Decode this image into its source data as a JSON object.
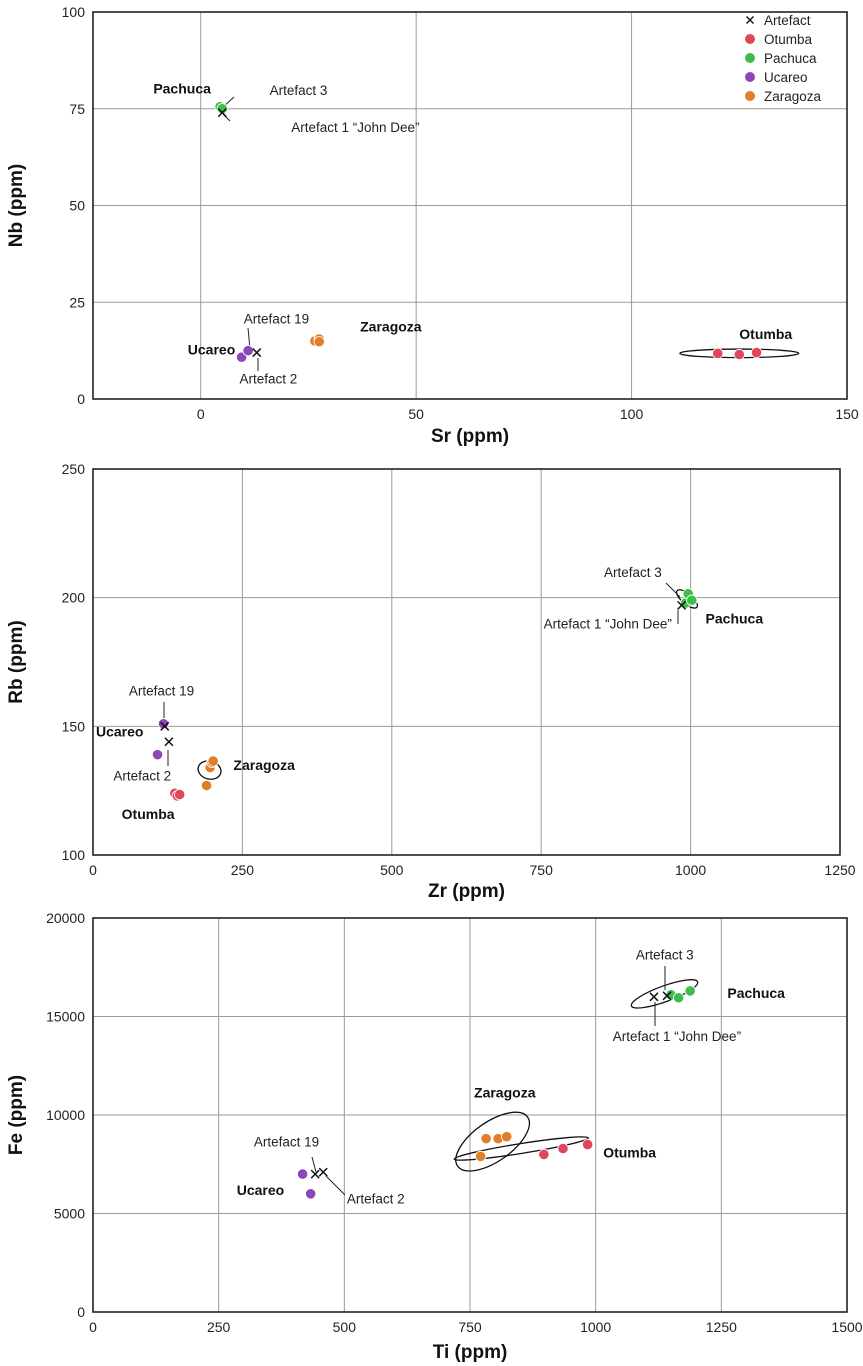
{
  "colors": {
    "otumba": "#e0475a",
    "pachuca": "#3cbf4a",
    "ucareo": "#8e45b8",
    "zaragoza": "#e07f27",
    "artefact": "#111111"
  },
  "legend": [
    {
      "key": "artefact",
      "label": "Artefact",
      "marker": "x"
    },
    {
      "key": "otumba",
      "label": "Otumba",
      "marker": "dot"
    },
    {
      "key": "pachuca",
      "label": "Pachuca",
      "marker": "dot"
    },
    {
      "key": "ucareo",
      "label": "Ucareo",
      "marker": "dot"
    },
    {
      "key": "zaragoza",
      "label": "Zaragoza",
      "marker": "dot"
    }
  ],
  "chart_data": [
    {
      "type": "scatter",
      "xlabel": "Sr (ppm)",
      "ylabel": "Nb (ppm)",
      "xlim": [
        -25,
        150
      ],
      "ylim": [
        0,
        100
      ],
      "xticks": [
        0,
        50,
        100,
        150
      ],
      "yticks": [
        0,
        25,
        50,
        75,
        100
      ],
      "grid": true,
      "legend": "top-right",
      "series": [
        {
          "key": "otumba",
          "name": "Otumba",
          "points": [
            [
              120,
              11.8
            ],
            [
              125,
              11.5
            ],
            [
              129,
              12
            ]
          ]
        },
        {
          "key": "pachuca",
          "name": "Pachuca",
          "points": [
            [
              4.5,
              75.5
            ],
            [
              5,
              75
            ]
          ]
        },
        {
          "key": "ucareo",
          "name": "Ucareo",
          "points": [
            [
              9.5,
              10.8
            ],
            [
              11,
              12.5
            ]
          ]
        },
        {
          "key": "zaragoza",
          "name": "Zaragoza",
          "points": [
            [
              26.5,
              15
            ],
            [
              27.5,
              15.5
            ],
            [
              27.5,
              14.8
            ]
          ]
        },
        {
          "key": "artefact",
          "name": "Artefact",
          "points": [
            [
              5,
              74
            ],
            [
              13,
              12
            ]
          ]
        }
      ],
      "ellipses": [
        {
          "cx": 125,
          "cy": 11.8,
          "rx": 13.8,
          "ry": 1.1,
          "angle": 0
        }
      ],
      "source_labels": [
        {
          "text": "Pachuca",
          "x": -11,
          "y": 79
        },
        {
          "text": "Zaragoza",
          "x": 37,
          "y": 17.5
        },
        {
          "text": "Ucareo",
          "x": -3,
          "y": 11.5
        },
        {
          "text": "Otumba",
          "x": 125,
          "y": 15.5
        }
      ],
      "annotations": [
        {
          "text": "Artefact 3",
          "x": 16,
          "y": 78.5
        },
        {
          "text": "Artefact 1 “John Dee”",
          "x": 21,
          "y": 69
        },
        {
          "text": "Artefact 19",
          "x": 10,
          "y": 19.5
        },
        {
          "text": "Artefact 2",
          "x": 9,
          "y": 4
        }
      ]
    },
    {
      "type": "scatter",
      "xlabel": "Zr (ppm)",
      "ylabel": "Rb (ppm)",
      "xlim": [
        0,
        1250
      ],
      "ylim": [
        100,
        250
      ],
      "xticks": [
        0,
        250,
        500,
        750,
        1000,
        1250
      ],
      "yticks": [
        100,
        150,
        200,
        250
      ],
      "grid": true,
      "series": [
        {
          "key": "otumba",
          "name": "Otumba",
          "points": [
            [
              137,
              124
            ],
            [
              141,
              123
            ],
            [
              145,
              123.5
            ]
          ]
        },
        {
          "key": "pachuca",
          "name": "Pachuca",
          "points": [
            [
              992,
              198
            ],
            [
              996,
              201.5
            ],
            [
              1002,
              199
            ]
          ]
        },
        {
          "key": "ucareo",
          "name": "Ucareo",
          "points": [
            [
              118,
              151
            ],
            [
              108,
              139
            ]
          ]
        },
        {
          "key": "zaragoza",
          "name": "Zaragoza",
          "points": [
            [
              190,
              127
            ],
            [
              196,
              134
            ],
            [
              199,
              136
            ],
            [
              201,
              136.5
            ]
          ]
        },
        {
          "key": "artefact",
          "name": "Artefact",
          "points": [
            [
              985,
              197
            ],
            [
              127,
              144
            ],
            [
              120,
              150
            ]
          ]
        }
      ],
      "ellipses": [
        {
          "cx": 195,
          "cy": 133,
          "rx": 15,
          "ry": 4.5,
          "angle": 75
        },
        {
          "cx": 994,
          "cy": 199.5,
          "rx": 8.5,
          "ry": 5,
          "angle": 50
        }
      ],
      "source_labels": [
        {
          "text": "Pachuca",
          "x": 1025,
          "y": 190
        },
        {
          "text": "Zaragoza",
          "x": 235,
          "y": 133
        },
        {
          "text": "Ucareo",
          "x": 5,
          "y": 146
        },
        {
          "text": "Otumba",
          "x": 48,
          "y": 114
        }
      ],
      "annotations": [
        {
          "text": "Artefact 3",
          "x": 855,
          "y": 208
        },
        {
          "text": "Artefact 1 “John Dee”",
          "x": 754,
          "y": 188
        },
        {
          "text": "Artefact 19",
          "x": 60,
          "y": 162
        },
        {
          "text": "Artefact 2",
          "x": 34,
          "y": 129
        }
      ]
    },
    {
      "type": "scatter",
      "xlabel": "Ti (ppm)",
      "ylabel": "Fe (ppm)",
      "xlim": [
        0,
        1500
      ],
      "ylim": [
        0,
        20000
      ],
      "xticks": [
        0,
        250,
        500,
        750,
        1000,
        1250,
        1500
      ],
      "yticks": [
        0,
        5000,
        10000,
        15000,
        20000
      ],
      "grid": true,
      "series": [
        {
          "key": "otumba",
          "name": "Otumba",
          "points": [
            [
              897,
              8000
            ],
            [
              935,
              8300
            ],
            [
              984,
              8500
            ]
          ]
        },
        {
          "key": "pachuca",
          "name": "Pachuca",
          "points": [
            [
              1150,
              16100
            ],
            [
              1165,
              15950
            ],
            [
              1188,
              16300
            ]
          ]
        },
        {
          "key": "ucareo",
          "name": "Ucareo",
          "points": [
            [
              417,
              7000
            ],
            [
              433,
              6000
            ]
          ]
        },
        {
          "key": "zaragoza",
          "name": "Zaragoza",
          "points": [
            [
              771,
              7900
            ],
            [
              782,
              8800
            ],
            [
              806,
              8800
            ],
            [
              823,
              8900
            ]
          ]
        },
        {
          "key": "artefact",
          "name": "Artefact",
          "points": [
            [
              1116,
              16000
            ],
            [
              1142,
              16050
            ],
            [
              442,
              7000
            ],
            [
              458,
              7100
            ]
          ]
        }
      ],
      "ellipses": [
        {
          "cx": 852,
          "cy": 8300,
          "rx": 135,
          "ry": 250,
          "angle": 9
        },
        {
          "cx": 1137,
          "cy": 16150,
          "rx": 70,
          "ry": 400,
          "angle": 20
        },
        {
          "cx": 795,
          "cy": 8650,
          "rx": 85,
          "ry": 1000,
          "angle": 35
        }
      ],
      "source_labels": [
        {
          "text": "Pachuca",
          "x": 1262,
          "y": 15950
        },
        {
          "text": "Zaragoza",
          "x": 758,
          "y": 10900
        },
        {
          "text": "Ucareo",
          "x": 286,
          "y": 5950
        },
        {
          "text": "Otumba",
          "x": 1015,
          "y": 7850
        }
      ],
      "annotations": [
        {
          "text": "Artefact 3",
          "x": 1080,
          "y": 17900
        },
        {
          "text": "Artefact 1 “John Dee”",
          "x": 1034,
          "y": 13750
        },
        {
          "text": "Artefact 19",
          "x": 320,
          "y": 8400
        },
        {
          "text": "Artefact 2",
          "x": 505,
          "y": 5500
        }
      ]
    }
  ]
}
